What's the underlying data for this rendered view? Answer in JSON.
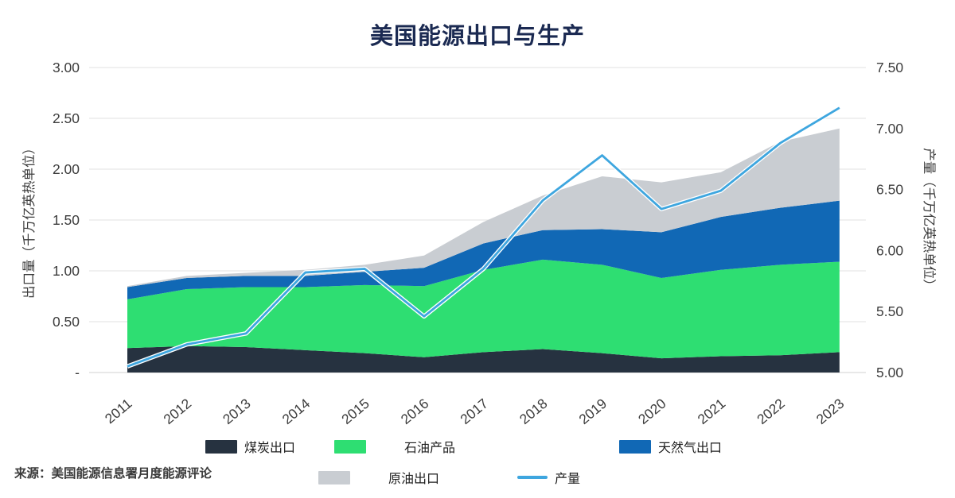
{
  "page": {
    "title": "美国能源出口与生产",
    "source": "来源：美国能源信息署月度能源评论"
  },
  "chart_data": {
    "type": "area",
    "stacked": true,
    "title": "美国能源出口与生产",
    "categories": [
      "2011",
      "2012",
      "2013",
      "2014",
      "2015",
      "2016",
      "2017",
      "2018",
      "2019",
      "2020",
      "2021",
      "2022",
      "2023"
    ],
    "series": [
      {
        "name": "煤炭出口",
        "kind": "area",
        "axis": "left",
        "color": "#263240",
        "values": [
          0.24,
          0.26,
          0.25,
          0.22,
          0.19,
          0.15,
          0.2,
          0.23,
          0.19,
          0.14,
          0.16,
          0.17,
          0.2
        ]
      },
      {
        "name": "石油产品",
        "kind": "area",
        "axis": "left",
        "color": "#2EDE72",
        "values": [
          0.48,
          0.56,
          0.59,
          0.62,
          0.67,
          0.7,
          0.81,
          0.88,
          0.87,
          0.79,
          0.85,
          0.89,
          0.89
        ]
      },
      {
        "name": "天然气出口",
        "kind": "area",
        "axis": "left",
        "color": "#1168B5",
        "values": [
          0.12,
          0.11,
          0.11,
          0.11,
          0.13,
          0.18,
          0.26,
          0.29,
          0.35,
          0.45,
          0.52,
          0.56,
          0.6
        ]
      },
      {
        "name": "原油出口",
        "kind": "area",
        "axis": "left",
        "color": "#C9CDD2",
        "values": [
          0.01,
          0.02,
          0.03,
          0.06,
          0.07,
          0.12,
          0.21,
          0.34,
          0.52,
          0.49,
          0.44,
          0.65,
          0.71
        ]
      },
      {
        "name": "产量",
        "kind": "line",
        "axis": "right",
        "color": "#3EA6DF",
        "values": [
          5.05,
          5.23,
          5.32,
          5.82,
          5.85,
          5.46,
          5.85,
          6.41,
          6.78,
          6.34,
          6.49,
          6.88,
          7.17
        ]
      }
    ],
    "left_axis": {
      "label": "出口量（千万亿英热单位）",
      "min": 0,
      "max": 3,
      "ticks": [
        {
          "value": 3.0,
          "label": "3.00"
        },
        {
          "value": 2.5,
          "label": "2.50"
        },
        {
          "value": 2.0,
          "label": "2.00"
        },
        {
          "value": 1.5,
          "label": "1.50"
        },
        {
          "value": 1.0,
          "label": "1.00"
        },
        {
          "value": 0.5,
          "label": "0.50"
        },
        {
          "value": 0.0,
          "label": "-"
        }
      ]
    },
    "right_axis": {
      "label": "产量（千万亿英热单位）",
      "min": 5,
      "max": 7.5,
      "ticks": [
        {
          "value": 7.5,
          "label": "7.50"
        },
        {
          "value": 7.0,
          "label": "7.00"
        },
        {
          "value": 6.5,
          "label": "6.50"
        },
        {
          "value": 6.0,
          "label": "6.00"
        },
        {
          "value": 5.5,
          "label": "5.50"
        },
        {
          "value": 5.0,
          "label": "5.00"
        }
      ]
    },
    "grid": true,
    "legend_position": "bottom"
  }
}
